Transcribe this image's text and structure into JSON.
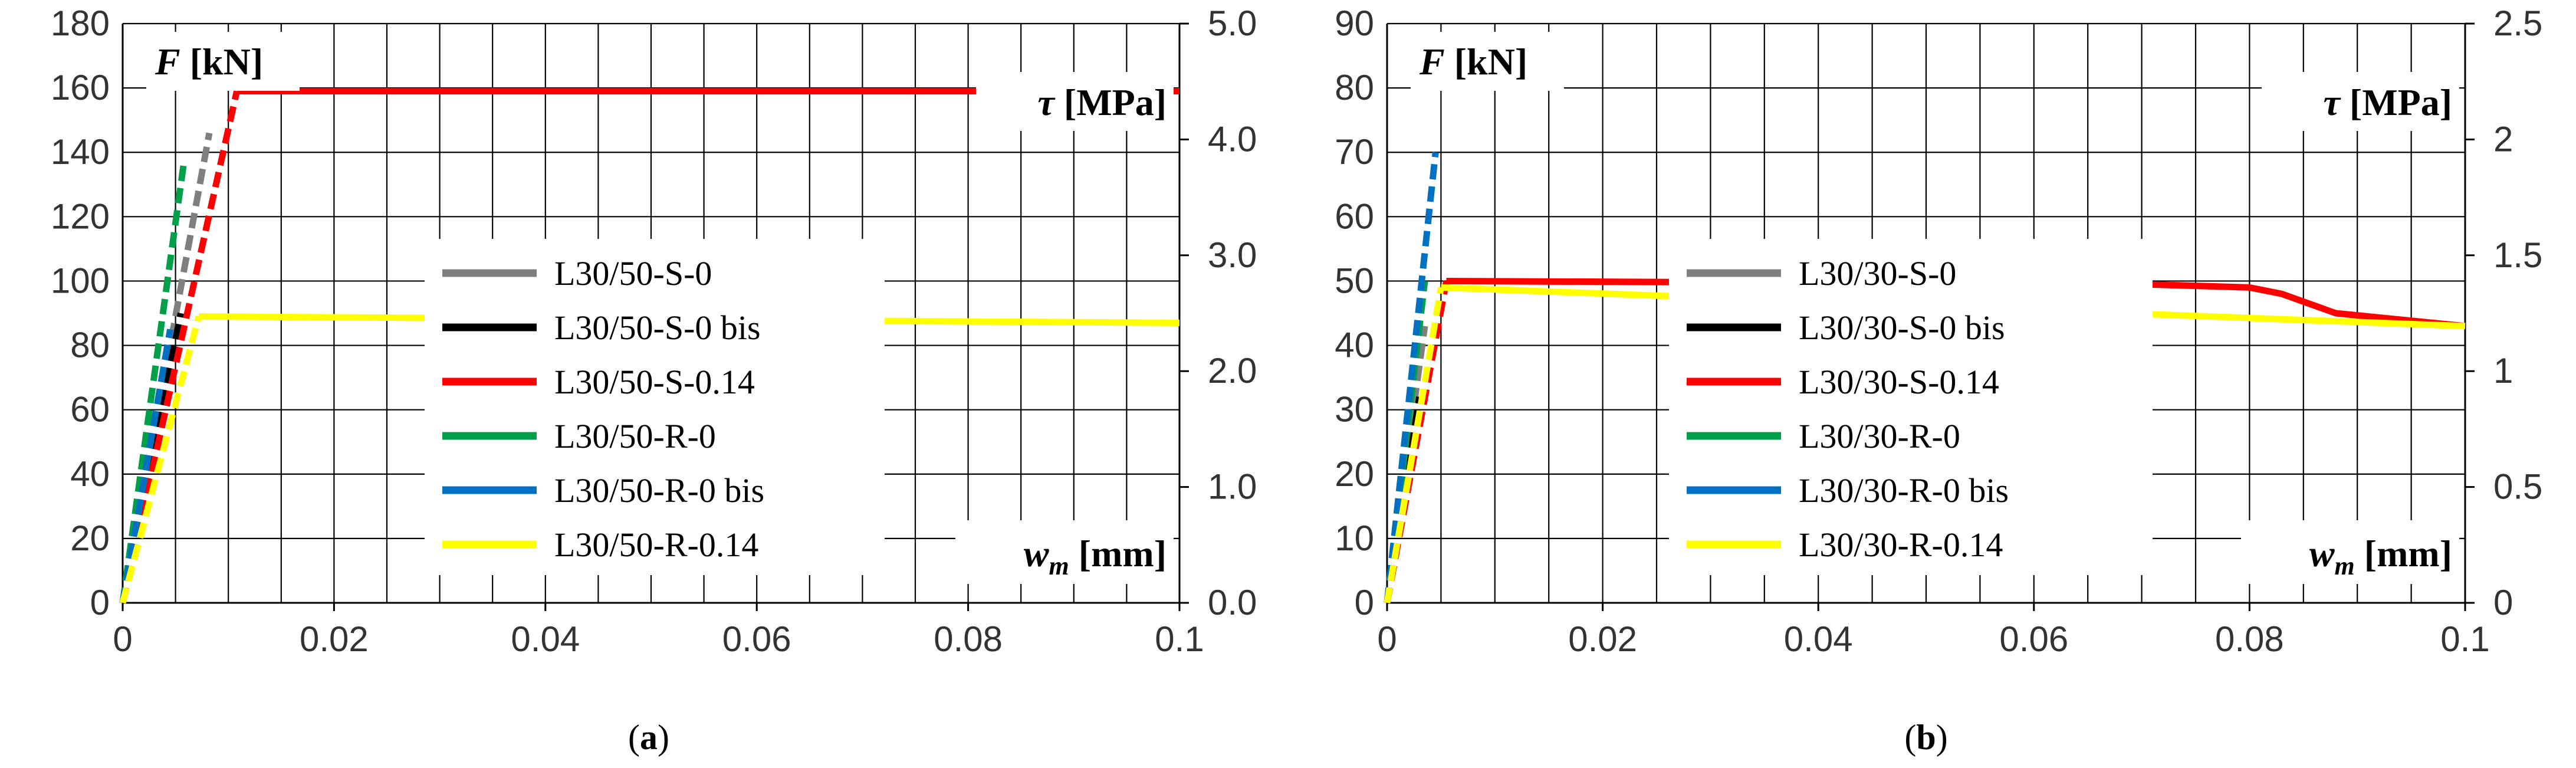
{
  "chart_data": [
    {
      "type": "line",
      "panel": "a",
      "caption_letter": "a",
      "xlim": [
        0,
        0.1
      ],
      "ylim": [
        0,
        180
      ],
      "y2lim": [
        0.0,
        5.0
      ],
      "xticks": [
        "0",
        "0.02",
        "0.04",
        "0.06",
        "0.08",
        "0.1"
      ],
      "yticks": [
        "0",
        "20",
        "40",
        "60",
        "80",
        "100",
        "120",
        "140",
        "160",
        "180"
      ],
      "y2ticks": [
        "0.0",
        "1.0",
        "2.0",
        "3.0",
        "4.0",
        "5.0"
      ],
      "ylabel_symbol": "F",
      "ylabel_unit": "[kN]",
      "y2label_symbol": "τ",
      "y2label_unit": "[MPa]",
      "xlabel_symbol": "w",
      "xlabel_sub": "m",
      "xlabel_unit": "[mm]",
      "series": [
        {
          "name": "L30/50-S-0",
          "color": "#7f7f7f",
          "points": [
            [
              0,
              0
            ],
            [
              0.0082,
              146
            ]
          ]
        },
        {
          "name": "L30/50-S-0 bis",
          "color": "#000000",
          "points": [
            [
              0,
              0
            ],
            [
              0.0055,
              90
            ]
          ]
        },
        {
          "name": "L30/50-S-0.14",
          "color": "#ff0000",
          "points": [
            [
              0,
              0
            ],
            [
              0.0108,
              159
            ],
            [
              0.1,
              159
            ]
          ]
        },
        {
          "name": "L30/50-R-0",
          "color": "#00a04a",
          "points": [
            [
              0,
              0
            ],
            [
              0.0058,
              137
            ]
          ]
        },
        {
          "name": "L30/50-R-0 bis",
          "color": "#0070c0",
          "points": [
            [
              0,
              0
            ],
            [
              0.0045,
              85
            ]
          ]
        },
        {
          "name": "L30/50-R-0.14",
          "color": "#ffff00",
          "points": [
            [
              0,
              0
            ],
            [
              0.0072,
              89
            ],
            [
              0.1,
              87
            ]
          ]
        }
      ]
    },
    {
      "type": "line",
      "panel": "b",
      "caption_letter": "b",
      "xlim": [
        0,
        0.1
      ],
      "ylim": [
        0,
        90
      ],
      "y2lim": [
        0,
        2.5
      ],
      "xticks": [
        "0",
        "0.02",
        "0.04",
        "0.06",
        "0.08",
        "0.1"
      ],
      "yticks": [
        "0",
        "10",
        "20",
        "30",
        "40",
        "50",
        "60",
        "70",
        "80",
        "90"
      ],
      "y2ticks": [
        "0",
        "0.5",
        "1",
        "1.5",
        "2",
        "2.5"
      ],
      "ylabel_symbol": "F",
      "ylabel_unit": "[kN]",
      "y2label_symbol": "τ",
      "y2label_unit": "[MPa]",
      "xlabel_symbol": "w",
      "xlabel_sub": "m",
      "xlabel_unit": "[mm]",
      "series": [
        {
          "name": "L30/30-S-0",
          "color": "#7f7f7f",
          "points": [
            [
              0,
              0
            ],
            [
              0.0035,
              43
            ]
          ]
        },
        {
          "name": "L30/30-S-0 bis",
          "color": "#000000",
          "points": [
            [
              0,
              0
            ],
            [
              0.003,
              32
            ]
          ]
        },
        {
          "name": "L30/30-S-0.14",
          "color": "#ff0000",
          "points": [
            [
              0,
              0
            ],
            [
              0.0055,
              50
            ],
            [
              0.07,
              49.5
            ],
            [
              0.08,
              49
            ],
            [
              0.083,
              48
            ],
            [
              0.088,
              45
            ],
            [
              0.1,
              43
            ]
          ]
        },
        {
          "name": "L30/30-R-0",
          "color": "#00a04a",
          "points": [
            [
              0,
              0
            ],
            [
              0.0035,
              50
            ]
          ]
        },
        {
          "name": "L30/30-R-0 bis",
          "color": "#0070c0",
          "points": [
            [
              0,
              0
            ],
            [
              0.0045,
              70
            ]
          ]
        },
        {
          "name": "L30/30-R-0.14",
          "color": "#ffff00",
          "points": [
            [
              0,
              0
            ],
            [
              0.005,
              49
            ],
            [
              0.1,
              43
            ]
          ]
        }
      ]
    }
  ]
}
